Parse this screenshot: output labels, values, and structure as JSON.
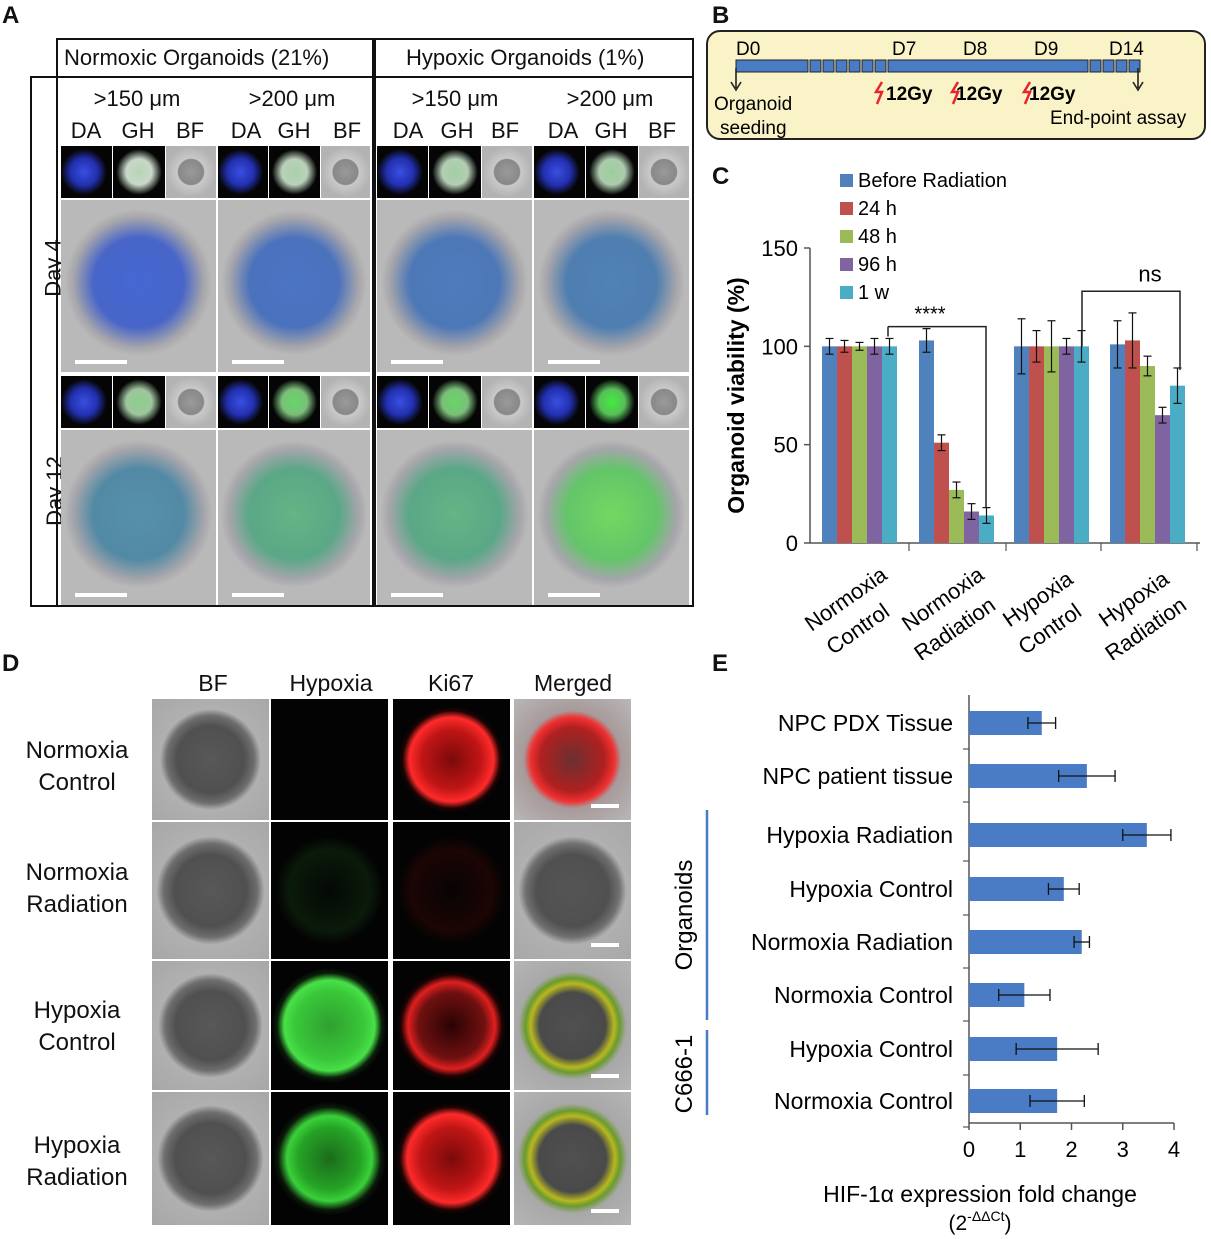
{
  "panel_a": {
    "label": "A",
    "group_headers": [
      "Normoxic Organoids (21%)",
      "Hypoxic Organoids (1%)"
    ],
    "size_headers": [
      ">150 μm",
      ">200 μm",
      ">150 μm",
      ">200 μm"
    ],
    "channel_labels": [
      "DA",
      "GH",
      "BF"
    ],
    "row_labels": [
      "Day 4",
      "Day 12"
    ]
  },
  "panel_b": {
    "label": "B",
    "days": [
      "D0",
      "D7",
      "D8",
      "D9",
      "D14"
    ],
    "doses": [
      "12Gy",
      "12Gy",
      "12Gy"
    ],
    "start_label": "Organoid seeding",
    "end_label": "End-point assay",
    "colors": {
      "box_bg": "#faf3c8",
      "bar": "#4a7cc5",
      "bolt": "#e8252a"
    }
  },
  "panel_c": {
    "label": "C",
    "significance": [
      "****",
      "ns"
    ]
  },
  "chart_data": [
    {
      "type": "bar",
      "ylabel": "Organoid viability (%)",
      "ylim": [
        0,
        150
      ],
      "yticks": [
        0,
        50,
        100,
        150
      ],
      "categories": [
        "Normoxia Control",
        "Normoxia Radiation",
        "Hypoxia Control",
        "Hypoxia Radiation"
      ],
      "series": [
        {
          "name": "Before Radiation",
          "color": "#4f81bd",
          "values": [
            100,
            103,
            100,
            101
          ],
          "errors": [
            4,
            6,
            14,
            12
          ]
        },
        {
          "name": "24 h",
          "color": "#c0504d",
          "values": [
            100,
            51,
            100,
            103
          ],
          "errors": [
            3,
            4,
            8,
            14
          ]
        },
        {
          "name": "48  h",
          "color": "#9bbb59",
          "values": [
            100,
            27,
            100,
            90
          ],
          "errors": [
            2,
            4,
            13,
            5
          ]
        },
        {
          "name": "96 h",
          "color": "#8064a2",
          "values": [
            100,
            16,
            100,
            65
          ],
          "errors": [
            4,
            4,
            4,
            4
          ]
        },
        {
          "name": "1 w",
          "color": "#4bacc6",
          "values": [
            100,
            14,
            100,
            80
          ],
          "errors": [
            4,
            4,
            8,
            9
          ]
        }
      ],
      "grid": false,
      "legend": "top"
    },
    {
      "type": "bar",
      "orientation": "horizontal",
      "xlabel": "HIF-1α expression fold change",
      "xlabel_sub": "(2",
      "xlabel_sup": "-ΔΔCt",
      "xlabel_close": ")",
      "xlim": [
        0,
        4
      ],
      "xticks": [
        0,
        1,
        2,
        3,
        4
      ],
      "color": "#4a7cc5",
      "categories": [
        "NPC PDX Tissue",
        "NPC patient tissue",
        "Hypoxia Radiation",
        "Hypoxia Control",
        "Normoxia Radiation",
        "Normoxia Control",
        "Hypoxia Control",
        "Normoxia Control"
      ],
      "values": [
        1.42,
        2.3,
        3.47,
        1.85,
        2.2,
        1.08,
        1.72,
        1.72
      ],
      "errors": [
        0.27,
        0.55,
        0.47,
        0.3,
        0.15,
        0.5,
        0.8,
        0.53
      ],
      "groups": [
        "Organoids",
        "C666-1"
      ]
    }
  ],
  "panel_d": {
    "label": "D",
    "column_headers": [
      "BF",
      "Hypoxia",
      "Ki67",
      "Merged"
    ],
    "row_labels": [
      {
        "line1": "Normoxia",
        "line2": "Control"
      },
      {
        "line1": "Normoxia",
        "line2": "Radiation"
      },
      {
        "line1": "Hypoxia",
        "line2": "Control"
      },
      {
        "line1": "Hypoxia",
        "line2": "Radiation"
      }
    ]
  },
  "panel_e": {
    "label": "E"
  }
}
